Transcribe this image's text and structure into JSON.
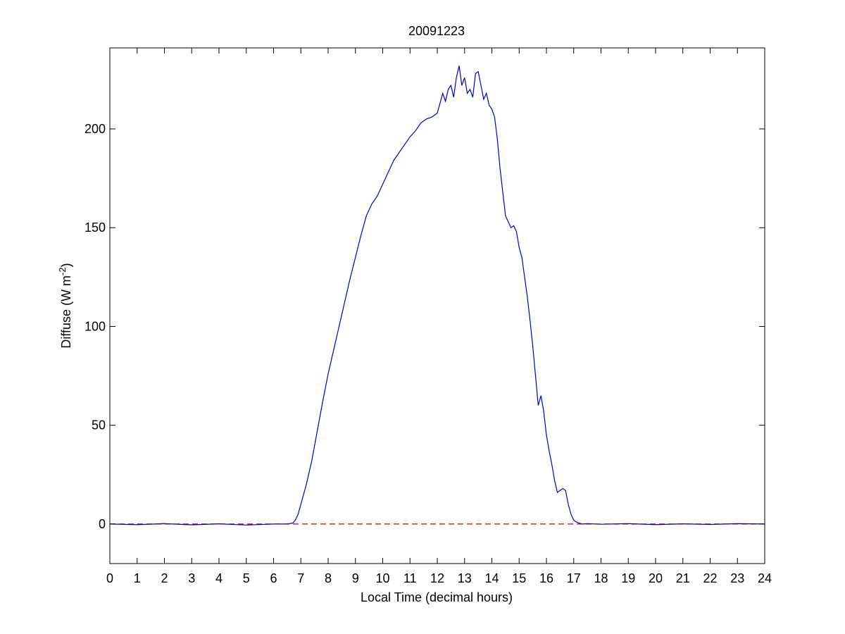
{
  "chart_data": {
    "type": "line",
    "title": "20091223",
    "xlabel": "Local Time (decimal hours)",
    "ylabel": "Diffuse (W m",
    "ylabel_superscript": "-2",
    "ylabel_close": ")",
    "xlim": [
      0,
      24
    ],
    "ylim": [
      -20,
      241
    ],
    "xticks": [
      0,
      1,
      2,
      3,
      4,
      5,
      6,
      7,
      8,
      9,
      10,
      11,
      12,
      13,
      14,
      15,
      16,
      17,
      18,
      19,
      20,
      21,
      22,
      23,
      24
    ],
    "xtick_labels": [
      "0",
      "1",
      "2",
      "3",
      "4",
      "5",
      "6",
      "7",
      "8",
      "9",
      "10",
      "11",
      "12",
      "13",
      "14",
      "15",
      "16",
      "17",
      "18",
      "19",
      "20",
      "21",
      "22",
      "23",
      "24"
    ],
    "yticks": [
      0,
      50,
      100,
      150,
      200
    ],
    "ytick_labels": [
      "0",
      "50",
      "100",
      "150",
      "200"
    ],
    "grid": false,
    "series": [
      {
        "color": "#0000cc",
        "style": "solid",
        "x": [
          0,
          1,
          2,
          3,
          4,
          5,
          6,
          6.5,
          6.7,
          6.8,
          6.9,
          7.0,
          7.2,
          7.4,
          7.6,
          7.8,
          8.0,
          8.2,
          8.4,
          8.6,
          8.8,
          9.0,
          9.2,
          9.4,
          9.6,
          9.8,
          10.0,
          10.2,
          10.4,
          10.6,
          10.8,
          11.0,
          11.2,
          11.4,
          11.6,
          11.8,
          12.0,
          12.1,
          12.2,
          12.3,
          12.4,
          12.5,
          12.6,
          12.7,
          12.8,
          12.9,
          13.0,
          13.1,
          13.2,
          13.3,
          13.4,
          13.5,
          13.6,
          13.7,
          13.8,
          13.9,
          14.0,
          14.1,
          14.2,
          14.3,
          14.4,
          14.5,
          14.6,
          14.7,
          14.8,
          14.9,
          15.0,
          15.1,
          15.2,
          15.3,
          15.4,
          15.5,
          15.6,
          15.7,
          15.8,
          15.9,
          16.0,
          16.1,
          16.2,
          16.3,
          16.4,
          16.5,
          16.6,
          16.7,
          16.8,
          16.9,
          17.0,
          17.1,
          17.2,
          17.3,
          17.5,
          18,
          19,
          20,
          21,
          22,
          23,
          24
        ],
        "y": [
          0,
          -0.3,
          0.2,
          -0.4,
          0.1,
          -0.5,
          0,
          0,
          0.5,
          2,
          5,
          10,
          20,
          32,
          47,
          62,
          76,
          88,
          100,
          112,
          124,
          135,
          146,
          156,
          162,
          166,
          172,
          178,
          184,
          188,
          192,
          196,
          199,
          203,
          205,
          206,
          208,
          213,
          218,
          214,
          220,
          222,
          216,
          226,
          232,
          222,
          226,
          218,
          220,
          216,
          228,
          229,
          222,
          215,
          218,
          212,
          210,
          206,
          195,
          180,
          168,
          156,
          153,
          150,
          151,
          148,
          140,
          135,
          125,
          115,
          103,
          90,
          75,
          60,
          65,
          57,
          45,
          37,
          30,
          22,
          16,
          17,
          18,
          17,
          10,
          5,
          2,
          1,
          0.5,
          0,
          0.2,
          -0.1,
          0.2,
          -0.3,
          0.1,
          -0.2,
          0.2,
          0
        ]
      },
      {
        "color": "#cc0000",
        "style": "dashed",
        "x": [
          0,
          24
        ],
        "y": [
          0,
          0
        ]
      }
    ]
  }
}
